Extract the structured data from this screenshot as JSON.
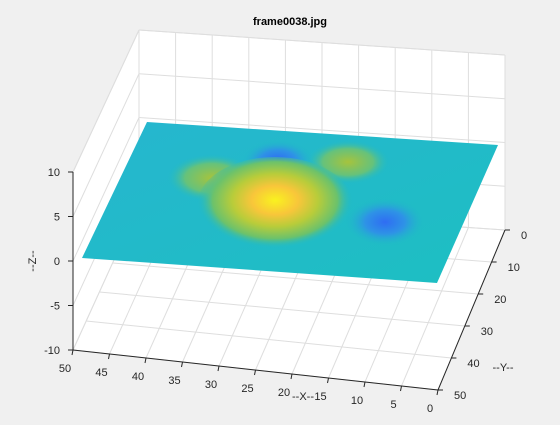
{
  "chart_data": {
    "type": "surface",
    "title": "frame0038.jpg",
    "xlabel": "--X--",
    "ylabel": "--Y--",
    "zlabel": "--Z--",
    "xlim": [
      0,
      50
    ],
    "ylim": [
      0,
      50
    ],
    "zlim": [
      -10,
      10
    ],
    "x_ticks": [
      "0",
      "5",
      "10",
      "15",
      "20",
      "25",
      "30",
      "35",
      "40",
      "45",
      "50"
    ],
    "y_ticks": [
      "0",
      "10",
      "20",
      "30",
      "40",
      "50"
    ],
    "z_ticks": [
      "-10",
      "-5",
      "0",
      "5",
      "10"
    ],
    "grid": true,
    "colormap": "parula",
    "surface_peaks": [
      {
        "x": 26,
        "y": 19,
        "z": 8.1
      },
      {
        "x": 37,
        "y": 15,
        "z": 3.6
      },
      {
        "x": 16,
        "y": 15,
        "z": 3.4
      },
      {
        "x": 26,
        "y": 11,
        "z": -3.2
      },
      {
        "x": 11,
        "y": 22,
        "z": -3.0
      }
    ],
    "baseline_z": 0,
    "colors": {
      "background": "#f0f0f0",
      "axes": "#ffffff",
      "grid": "#dedede",
      "axis_line": "#262626"
    }
  }
}
